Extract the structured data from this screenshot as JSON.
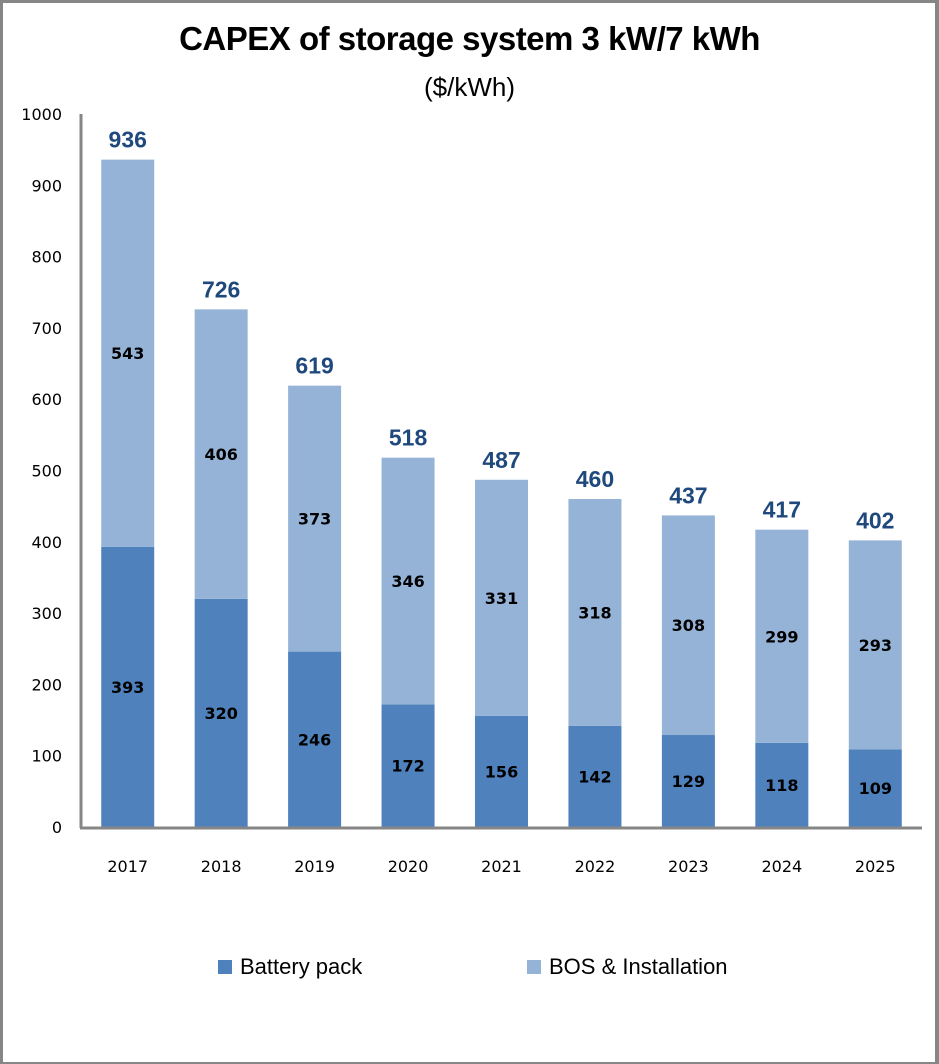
{
  "chart_data": {
    "type": "bar",
    "stacked": true,
    "title": "CAPEX of storage system 3 kW/7 kWh",
    "subtitle": "($/kWh)",
    "xlabel": "",
    "ylabel": "",
    "ylim": [
      0,
      1000
    ],
    "yticks": [
      0,
      100,
      200,
      300,
      400,
      500,
      600,
      700,
      800,
      900,
      1000
    ],
    "grid": false,
    "legend_position": "bottom",
    "categories": [
      "2017",
      "2018",
      "2019",
      "2020",
      "2021",
      "2022",
      "2023",
      "2024",
      "2025"
    ],
    "series": [
      {
        "name": "Battery pack",
        "color": "#4f81bd",
        "values": [
          393,
          320,
          246,
          172,
          156,
          142,
          129,
          118,
          109
        ]
      },
      {
        "name": "BOS & Installation",
        "color": "#95b3d7",
        "values": [
          543,
          406,
          373,
          346,
          331,
          318,
          308,
          299,
          293
        ]
      }
    ],
    "totals": [
      936,
      726,
      619,
      518,
      487,
      460,
      437,
      417,
      402
    ],
    "total_label_color": "#1f497d",
    "axis_color": "#868686"
  }
}
